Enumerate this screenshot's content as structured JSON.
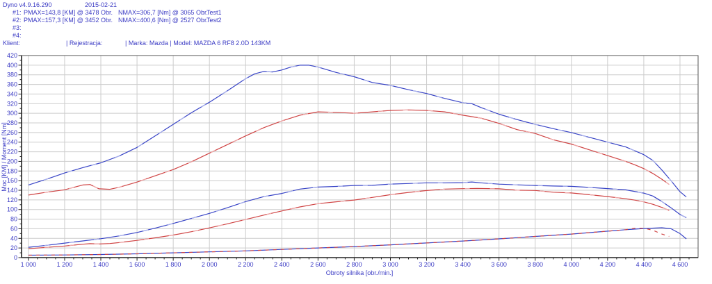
{
  "header": {
    "app_version": "Dyno v4.9.16.290",
    "date": "2015-02-21",
    "runs": [
      {
        "label": "#1:",
        "pmax": "PMAX=143,8 [KM] @ 3478 Obr.",
        "nmax": "NMAX=306,7 [Nm] @ 3065 Obr.",
        "test_name": "Test1"
      },
      {
        "label": "#2:",
        "pmax": "PMAX=157,3 [KM] @ 3452 Obr.",
        "nmax": "NMAX=400,6 [Nm] @ 2527 Obr.",
        "test_name": "Test2"
      },
      {
        "label": "#3:",
        "pmax": "",
        "nmax": "",
        "test_name": ""
      },
      {
        "label": "#4:",
        "pmax": "",
        "nmax": "",
        "test_name": ""
      }
    ],
    "client_label": "Klient:",
    "registration_label": "| Rejestracja:",
    "vehicle_info": "| Marka: Mazda | Model: MAZDA 6 RF8 2.0D 143KM"
  },
  "chart_data": {
    "type": "line",
    "xlabel": "Obroty silnika [obr./min.]",
    "ylabel": "Moc [KM] / Moment [Nm]",
    "x_range": [
      962,
      4700
    ],
    "y_range": [
      0,
      420
    ],
    "x_major_ticks": [
      1000,
      1200,
      1400,
      1600,
      1800,
      2000,
      2200,
      2400,
      2600,
      2800,
      3000,
      3200,
      3400,
      3600,
      3800,
      4000,
      4200,
      4400,
      4600
    ],
    "x_tick_labels": [
      "1 000",
      "1 200",
      "1 400",
      "1 600",
      "1 800",
      "2 000",
      "2 200",
      "2 400",
      "2 600",
      "2 800",
      "3 000",
      "3 200",
      "3 400",
      "3 600",
      "3 800",
      "4 000",
      "4 200",
      "4 400",
      "4 600"
    ],
    "x_minor_step": 50,
    "y_major_ticks": [
      0,
      20,
      40,
      60,
      80,
      100,
      120,
      140,
      160,
      180,
      200,
      220,
      240,
      260,
      280,
      300,
      320,
      340,
      360,
      380,
      400,
      420
    ],
    "y_tick_labels": [
      "0",
      "20",
      "40",
      "60",
      "80",
      "100",
      "120",
      "140",
      "160",
      "180",
      "200",
      "220",
      "240",
      "260",
      "280",
      "300",
      "320",
      "340",
      "360",
      "380",
      "400",
      "420"
    ],
    "y_minor_step": 10,
    "grid": true,
    "legend": "none",
    "colors": {
      "grid": "#cccccc",
      "frame": "#555555",
      "axis": "#222222",
      "text": "#3b3bc4",
      "test1_red": "#cf4343",
      "test1_red_light": "#f0abab",
      "test2_blue": "#3743c6",
      "test2_blue_light": "#a9b1ec"
    },
    "series": [
      {
        "name": "torque-test2",
        "unit": "Nm",
        "color": "#3743c6",
        "light": "#a9b1ec",
        "dash": null,
        "points": [
          [
            1000,
            151
          ],
          [
            1100,
            163
          ],
          [
            1200,
            176
          ],
          [
            1300,
            187
          ],
          [
            1400,
            197
          ],
          [
            1500,
            211
          ],
          [
            1600,
            229
          ],
          [
            1700,
            253
          ],
          [
            1800,
            277
          ],
          [
            1900,
            301
          ],
          [
            2000,
            323
          ],
          [
            2100,
            347
          ],
          [
            2200,
            372
          ],
          [
            2250,
            382
          ],
          [
            2300,
            387
          ],
          [
            2350,
            386
          ],
          [
            2400,
            390
          ],
          [
            2450,
            396
          ],
          [
            2500,
            400
          ],
          [
            2550,
            400
          ],
          [
            2600,
            396
          ],
          [
            2700,
            385
          ],
          [
            2800,
            376
          ],
          [
            2900,
            364
          ],
          [
            3000,
            358
          ],
          [
            3100,
            349
          ],
          [
            3200,
            341
          ],
          [
            3300,
            331
          ],
          [
            3400,
            322
          ],
          [
            3450,
            320
          ],
          [
            3500,
            312
          ],
          [
            3600,
            298
          ],
          [
            3700,
            287
          ],
          [
            3800,
            277
          ],
          [
            3900,
            268
          ],
          [
            4000,
            260
          ],
          [
            4100,
            250
          ],
          [
            4200,
            240
          ],
          [
            4300,
            230
          ],
          [
            4400,
            214
          ],
          [
            4450,
            202
          ],
          [
            4500,
            182
          ],
          [
            4550,
            160
          ],
          [
            4600,
            137
          ],
          [
            4635,
            126
          ]
        ]
      },
      {
        "name": "torque-test1",
        "unit": "Nm",
        "color": "#cf4343",
        "light": "#f0abab",
        "dash": null,
        "points": [
          [
            1000,
            130
          ],
          [
            1100,
            136
          ],
          [
            1200,
            141
          ],
          [
            1250,
            146
          ],
          [
            1300,
            151
          ],
          [
            1340,
            152
          ],
          [
            1390,
            143
          ],
          [
            1450,
            142
          ],
          [
            1500,
            146
          ],
          [
            1600,
            157
          ],
          [
            1700,
            170
          ],
          [
            1800,
            183
          ],
          [
            1900,
            199
          ],
          [
            2000,
            217
          ],
          [
            2100,
            235
          ],
          [
            2200,
            253
          ],
          [
            2300,
            270
          ],
          [
            2400,
            284
          ],
          [
            2500,
            296
          ],
          [
            2600,
            303
          ],
          [
            2700,
            302
          ],
          [
            2800,
            300
          ],
          [
            2900,
            303
          ],
          [
            3000,
            306
          ],
          [
            3100,
            307
          ],
          [
            3200,
            306
          ],
          [
            3300,
            303
          ],
          [
            3400,
            296
          ],
          [
            3500,
            290
          ],
          [
            3600,
            279
          ],
          [
            3700,
            266
          ],
          [
            3800,
            258
          ],
          [
            3900,
            245
          ],
          [
            4000,
            236
          ],
          [
            4100,
            224
          ],
          [
            4200,
            212
          ],
          [
            4300,
            200
          ],
          [
            4350,
            193
          ],
          [
            4400,
            185
          ],
          [
            4450,
            175
          ],
          [
            4500,
            163
          ],
          [
            4540,
            152
          ]
        ]
      },
      {
        "name": "power-test2",
        "unit": "KM",
        "color": "#3743c6",
        "light": "#a9b1ec",
        "dash": null,
        "points": [
          [
            1000,
            21.5
          ],
          [
            1100,
            25.5
          ],
          [
            1200,
            30.1
          ],
          [
            1300,
            34.6
          ],
          [
            1400,
            39.3
          ],
          [
            1500,
            45.1
          ],
          [
            1600,
            52.2
          ],
          [
            1700,
            61.2
          ],
          [
            1800,
            71
          ],
          [
            1900,
            81.4
          ],
          [
            2000,
            92
          ],
          [
            2100,
            103.8
          ],
          [
            2200,
            116.5
          ],
          [
            2300,
            126.7
          ],
          [
            2400,
            133.3
          ],
          [
            2500,
            142.4
          ],
          [
            2600,
            146.6
          ],
          [
            2700,
            148
          ],
          [
            2800,
            149.9
          ],
          [
            2900,
            150.3
          ],
          [
            3000,
            152.9
          ],
          [
            3100,
            154
          ],
          [
            3200,
            155.4
          ],
          [
            3300,
            155.5
          ],
          [
            3400,
            155.9
          ],
          [
            3450,
            157.2
          ],
          [
            3500,
            155.5
          ],
          [
            3600,
            152.7
          ],
          [
            3700,
            151.2
          ],
          [
            3800,
            149.9
          ],
          [
            3900,
            148.8
          ],
          [
            4000,
            148.1
          ],
          [
            4100,
            145.9
          ],
          [
            4200,
            143.5
          ],
          [
            4300,
            140.8
          ],
          [
            4400,
            134.1
          ],
          [
            4450,
            128
          ],
          [
            4500,
            116.6
          ],
          [
            4550,
            103.7
          ],
          [
            4600,
            89.7
          ],
          [
            4635,
            83.2
          ]
        ]
      },
      {
        "name": "power-test1",
        "unit": "KM",
        "color": "#cf4343",
        "light": "#f0abab",
        "dash": null,
        "points": [
          [
            1000,
            18.5
          ],
          [
            1100,
            21.3
          ],
          [
            1200,
            24.1
          ],
          [
            1250,
            26
          ],
          [
            1300,
            27.9
          ],
          [
            1340,
            29
          ],
          [
            1390,
            28.3
          ],
          [
            1450,
            29.3
          ],
          [
            1500,
            31.2
          ],
          [
            1600,
            35.8
          ],
          [
            1700,
            41.1
          ],
          [
            1800,
            46.9
          ],
          [
            1900,
            53.8
          ],
          [
            2000,
            61.8
          ],
          [
            2100,
            70.3
          ],
          [
            2200,
            79.2
          ],
          [
            2300,
            88.4
          ],
          [
            2400,
            97
          ],
          [
            2500,
            105.4
          ],
          [
            2600,
            112.2
          ],
          [
            2700,
            116.1
          ],
          [
            2800,
            119.6
          ],
          [
            2900,
            125.1
          ],
          [
            3000,
            130.7
          ],
          [
            3100,
            135.5
          ],
          [
            3200,
            139.4
          ],
          [
            3300,
            142.4
          ],
          [
            3400,
            143.3
          ],
          [
            3478,
            143.8
          ],
          [
            3600,
            143
          ],
          [
            3700,
            140.1
          ],
          [
            3800,
            139.6
          ],
          [
            3900,
            136
          ],
          [
            4000,
            134.4
          ],
          [
            4100,
            130.8
          ],
          [
            4200,
            126.8
          ],
          [
            4300,
            122.4
          ],
          [
            4350,
            119.5
          ],
          [
            4400,
            115.9
          ],
          [
            4450,
            110.9
          ],
          [
            4500,
            104.4
          ],
          [
            4540,
            98.3
          ]
        ]
      },
      {
        "name": "aux-test2",
        "unit": "",
        "color": "#3743c6",
        "light": null,
        "dash": null,
        "points": [
          [
            1000,
            5
          ],
          [
            1200,
            5.5
          ],
          [
            1400,
            6.5
          ],
          [
            1600,
            8
          ],
          [
            1800,
            10
          ],
          [
            2000,
            12
          ],
          [
            2200,
            14
          ],
          [
            2400,
            17
          ],
          [
            2600,
            20
          ],
          [
            2800,
            23
          ],
          [
            3000,
            26.5
          ],
          [
            3200,
            30.5
          ],
          [
            3400,
            34.5
          ],
          [
            3600,
            39
          ],
          [
            3800,
            44
          ],
          [
            4000,
            49
          ],
          [
            4200,
            55
          ],
          [
            4300,
            58
          ],
          [
            4400,
            60.5
          ],
          [
            4500,
            62
          ],
          [
            4550,
            60
          ],
          [
            4600,
            50
          ],
          [
            4635,
            39
          ]
        ]
      },
      {
        "name": "aux-test1",
        "unit": "",
        "color": "#cf4343",
        "light": null,
        "dash": "5 6",
        "points": [
          [
            1000,
            5
          ],
          [
            1200,
            5.5
          ],
          [
            1400,
            6.5
          ],
          [
            1600,
            8
          ],
          [
            1800,
            10
          ],
          [
            2000,
            12
          ],
          [
            2200,
            14
          ],
          [
            2400,
            17
          ],
          [
            2600,
            20
          ],
          [
            2800,
            23
          ],
          [
            3000,
            26.5
          ],
          [
            3200,
            30.5
          ],
          [
            3400,
            34.5
          ],
          [
            3600,
            39
          ],
          [
            3800,
            44
          ],
          [
            4000,
            49
          ],
          [
            4200,
            55
          ],
          [
            4300,
            58
          ],
          [
            4350,
            61
          ],
          [
            4400,
            61
          ],
          [
            4450,
            57
          ],
          [
            4500,
            49
          ],
          [
            4540,
            44
          ]
        ]
      }
    ]
  }
}
